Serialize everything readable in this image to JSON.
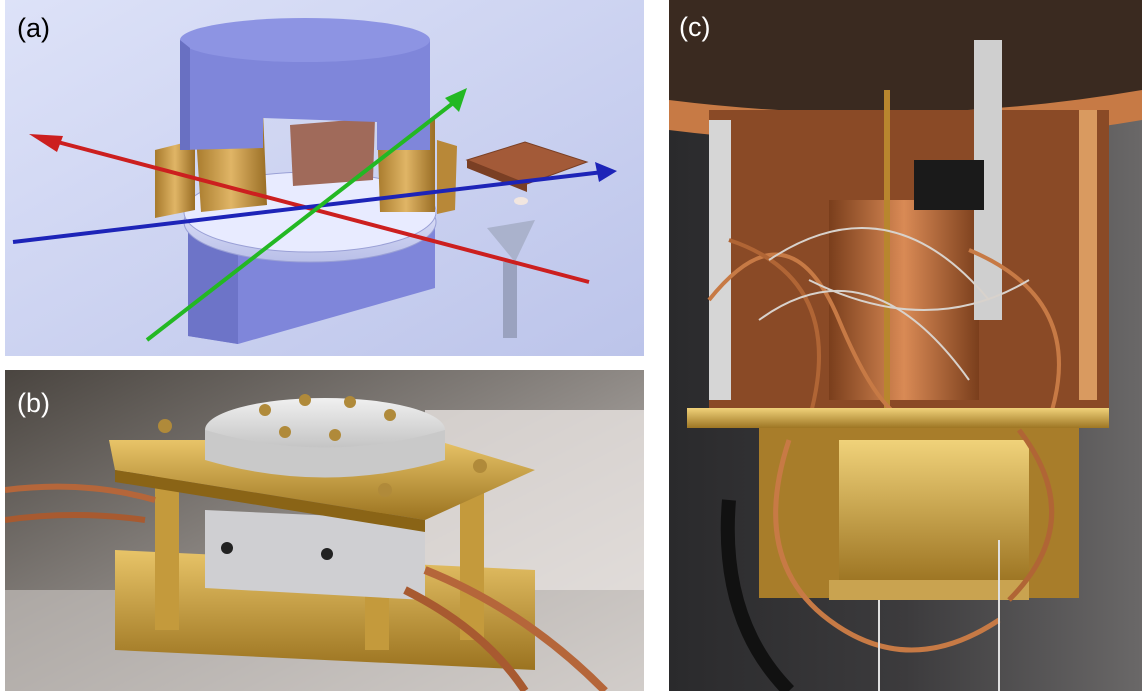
{
  "figure": {
    "panels": [
      {
        "id": "a",
        "label": "(a)",
        "kind": "3D schematic rendering"
      },
      {
        "id": "b",
        "label": "(b)",
        "kind": "photograph"
      },
      {
        "id": "c",
        "label": "(c)",
        "kind": "photograph"
      }
    ]
  },
  "colors": {
    "background": "#ffffff",
    "panel_a_bg": "#cfd6f2",
    "shield_blue": "#7f86da",
    "copper": "#c46a34",
    "gold": "#d4a640",
    "arrow_red": "#cc1f1f",
    "arrow_blue": "#1d24b8",
    "arrow_green": "#23b823"
  }
}
